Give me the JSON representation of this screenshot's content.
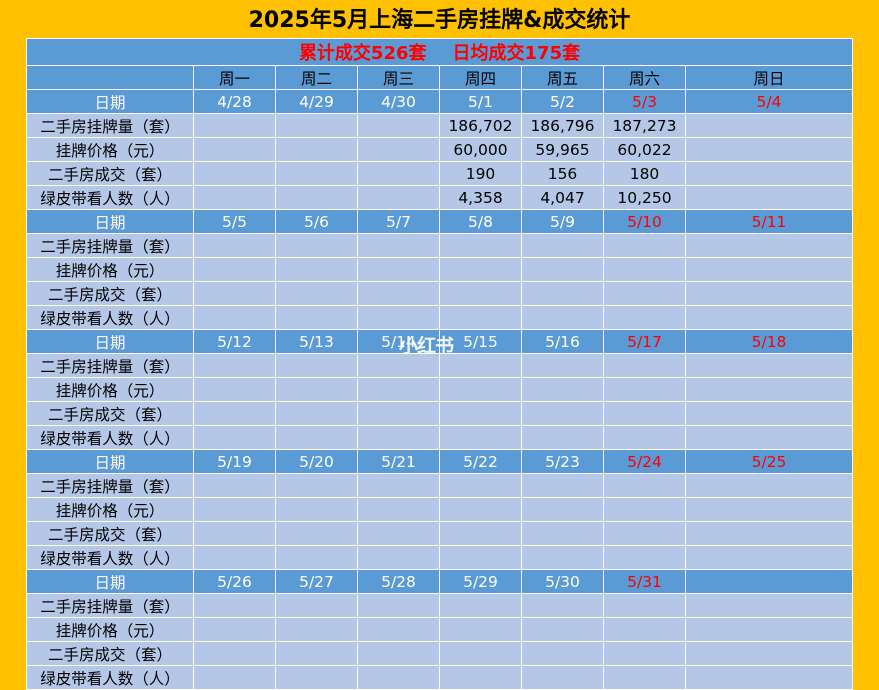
{
  "title": "2025年5月上海二手房挂牌&成交统计",
  "summary": {
    "total": "累计成交526套",
    "daily_avg": "日均成交175套"
  },
  "weekdays": [
    "周一",
    "周二",
    "周三",
    "周四",
    "周五",
    "周六",
    "周日"
  ],
  "date_label": "日期",
  "metrics": [
    "二手房挂牌量（套）",
    "挂牌价格（元）",
    "二手房成交（套）",
    "绿皮带看人数（人）"
  ],
  "weeks": [
    {
      "dates": [
        "4/28",
        "4/29",
        "4/30",
        "5/1",
        "5/2",
        "5/3",
        "5/4"
      ],
      "values": [
        [
          "",
          "",
          "",
          "186,702",
          "186,796",
          "187,273",
          ""
        ],
        [
          "",
          "",
          "",
          "60,000",
          "59,965",
          "60,022",
          ""
        ],
        [
          "",
          "",
          "",
          "190",
          "156",
          "180",
          ""
        ],
        [
          "",
          "",
          "",
          "4,358",
          "4,047",
          "10,250",
          ""
        ]
      ]
    },
    {
      "dates": [
        "5/5",
        "5/6",
        "5/7",
        "5/8",
        "5/9",
        "5/10",
        "5/11"
      ],
      "values": [
        [
          "",
          "",
          "",
          "",
          "",
          "",
          ""
        ],
        [
          "",
          "",
          "",
          "",
          "",
          "",
          ""
        ],
        [
          "",
          "",
          "",
          "",
          "",
          "",
          ""
        ],
        [
          "",
          "",
          "",
          "",
          "",
          "",
          ""
        ]
      ]
    },
    {
      "dates": [
        "5/12",
        "5/13",
        "5/14",
        "5/15",
        "5/16",
        "5/17",
        "5/18"
      ],
      "values": [
        [
          "",
          "",
          "",
          "",
          "",
          "",
          ""
        ],
        [
          "",
          "",
          "",
          "",
          "",
          "",
          ""
        ],
        [
          "",
          "",
          "",
          "",
          "",
          "",
          ""
        ],
        [
          "",
          "",
          "",
          "",
          "",
          "",
          ""
        ]
      ]
    },
    {
      "dates": [
        "5/19",
        "5/20",
        "5/21",
        "5/22",
        "5/23",
        "5/24",
        "5/25"
      ],
      "values": [
        [
          "",
          "",
          "",
          "",
          "",
          "",
          ""
        ],
        [
          "",
          "",
          "",
          "",
          "",
          "",
          ""
        ],
        [
          "",
          "",
          "",
          "",
          "",
          "",
          ""
        ],
        [
          "",
          "",
          "",
          "",
          "",
          "",
          ""
        ]
      ]
    },
    {
      "dates": [
        "5/26",
        "5/27",
        "5/28",
        "5/29",
        "5/30",
        "5/31",
        ""
      ],
      "values": [
        [
          "",
          "",
          "",
          "",
          "",
          "",
          ""
        ],
        [
          "",
          "",
          "",
          "",
          "",
          "",
          ""
        ],
        [
          "",
          "",
          "",
          "",
          "",
          "",
          ""
        ],
        [
          "",
          "",
          "",
          "",
          "",
          "",
          ""
        ]
      ]
    }
  ],
  "watermark": "小红书",
  "colors": {
    "background": "#ffc000",
    "header_blue": "#5b9bd5",
    "row_light": "#b4c7e7",
    "accent_red": "#ff0000"
  }
}
